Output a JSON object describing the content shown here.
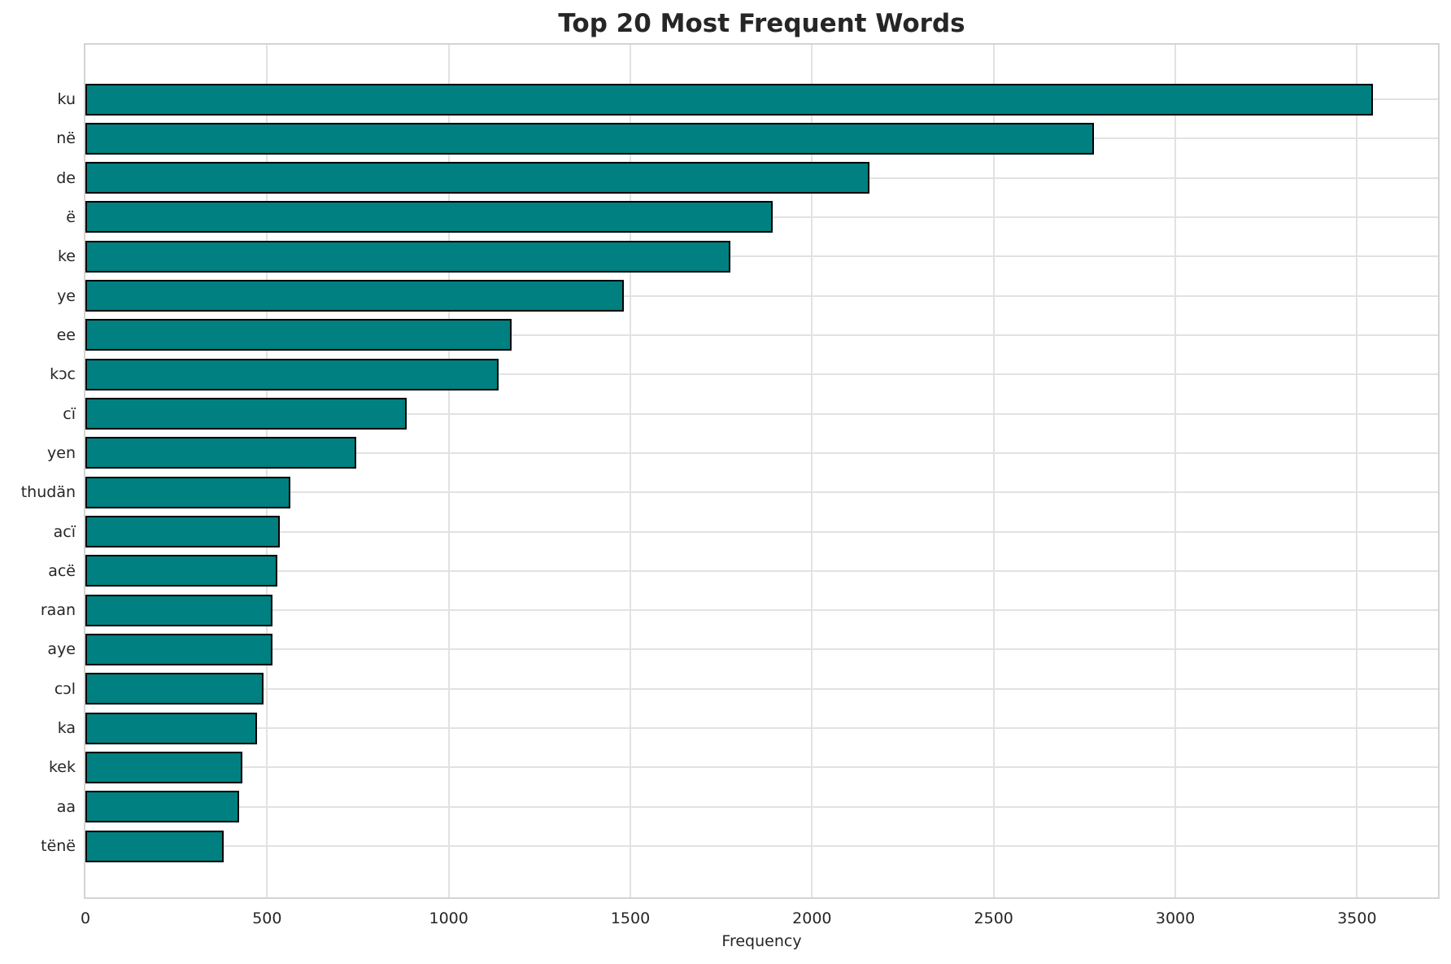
{
  "chart_data": {
    "type": "bar",
    "orientation": "horizontal",
    "title": "Top 20 Most Frequent Words",
    "xlabel": "Frequency",
    "ylabel": "",
    "categories": [
      "ku",
      "në",
      "de",
      "ë",
      "ke",
      "ye",
      "ee",
      "kɔc",
      "cï",
      "yen",
      "thudän",
      "acï",
      "acë",
      "raan",
      "aye",
      "cɔl",
      "ka",
      "kek",
      "aa",
      "tënë"
    ],
    "values": [
      3545,
      2777,
      2158,
      1891,
      1776,
      1483,
      1173,
      1137,
      885,
      746,
      565,
      535,
      529,
      516,
      514,
      491,
      472,
      433,
      424,
      381
    ],
    "xlim": [
      0,
      3723
    ],
    "xticks": [
      0,
      500,
      1000,
      1500,
      2000,
      2500,
      3000,
      3500
    ],
    "grid": true,
    "legend_position": "none",
    "colors": {
      "bar_fill": "#008080",
      "bar_edge": "#000000",
      "grid": "#e2e2e2",
      "spine": "#d4d4d4",
      "text": "#262626",
      "background": "#ffffff"
    }
  }
}
